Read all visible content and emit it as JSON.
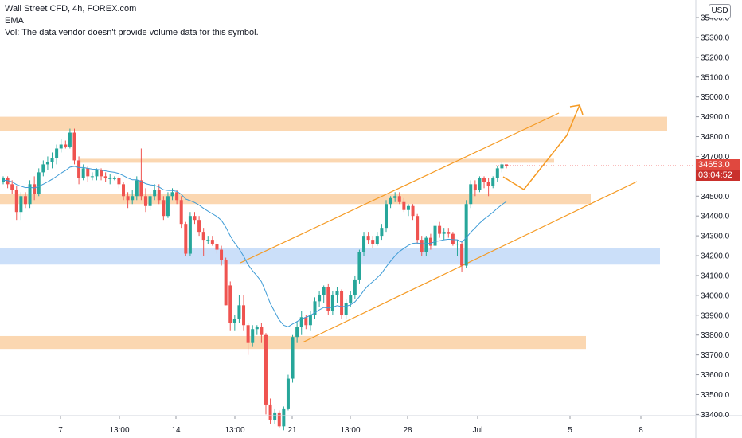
{
  "header": {
    "symbol_line": "Wall Street CFD, 4h, FOREX.com",
    "indicator": "EMA",
    "volume_note": "Vol: The data vendor doesn't provide volume data for this symbol."
  },
  "currency_button": "USD",
  "last_price": {
    "value": "34653.0",
    "countdown": "03:04:52"
  },
  "colors": {
    "up": "#26a69a",
    "down": "#ef5350",
    "ema": "#3d9bd6",
    "zone_orange": "#fbd3a8",
    "zone_blue": "#c5dcf8",
    "channel": "#f59a23"
  },
  "chart_data": {
    "type": "candlestick",
    "title": "Wall Street CFD, 4h, FOREX.com",
    "y_axis_labels": [
      "35400.0",
      "35300.0",
      "35200.0",
      "35100.0",
      "35000.0",
      "34900.0",
      "34800.0",
      "34700.0",
      "34600.0",
      "34500.0",
      "34400.0",
      "34300.0",
      "34200.0",
      "34100.0",
      "34000.0",
      "33900.0",
      "33800.0",
      "33700.0",
      "33600.0",
      "33500.0",
      "33400.0"
    ],
    "x_axis_labels": [
      "7",
      "13:00",
      "14",
      "13:00",
      "21",
      "13:00",
      "28",
      "Jul",
      "5",
      "8"
    ],
    "ylim": [
      33355,
      35450
    ],
    "support_resistance_zones": [
      {
        "color": "orange",
        "from": 34830,
        "to": 34900
      },
      {
        "color": "orange",
        "from": 34668,
        "to": 34688
      },
      {
        "color": "orange",
        "from": 34460,
        "to": 34510
      },
      {
        "color": "blue",
        "from": 34155,
        "to": 34240
      },
      {
        "color": "orange",
        "from": 33730,
        "to": 33795
      }
    ],
    "channel_lines": [
      {
        "role": "upper",
        "from": [
          34140
        ],
        "to": [
          34920
        ]
      },
      {
        "role": "lower",
        "from": [
          33800
        ],
        "to": [
          34580
        ]
      }
    ],
    "projection_path": [
      34655,
      34520,
      34780,
      35000,
      34950
    ],
    "series": [
      {
        "type": "candles",
        "values": [
          [
            34570,
            34600,
            34560,
            34590
          ],
          [
            34590,
            34600,
            34540,
            34560
          ],
          [
            34560,
            34580,
            34510,
            34530
          ],
          [
            34530,
            34550,
            34380,
            34420
          ],
          [
            34420,
            34520,
            34380,
            34500
          ],
          [
            34500,
            34520,
            34440,
            34460
          ],
          [
            34460,
            34580,
            34440,
            34560
          ],
          [
            34560,
            34600,
            34480,
            34510
          ],
          [
            34510,
            34640,
            34500,
            34620
          ],
          [
            34620,
            34680,
            34600,
            34660
          ],
          [
            34660,
            34700,
            34630,
            34670
          ],
          [
            34670,
            34720,
            34640,
            34690
          ],
          [
            34690,
            34760,
            34660,
            34740
          ],
          [
            34740,
            34790,
            34720,
            34760
          ],
          [
            34760,
            34780,
            34740,
            34750
          ],
          [
            34750,
            34840,
            34740,
            34820
          ],
          [
            34820,
            34840,
            34660,
            34680
          ],
          [
            34680,
            34700,
            34560,
            34590
          ],
          [
            34590,
            34660,
            34580,
            34640
          ],
          [
            34640,
            34650,
            34570,
            34600
          ],
          [
            34600,
            34620,
            34580,
            34600
          ],
          [
            34600,
            34640,
            34580,
            34630
          ],
          [
            34630,
            34640,
            34580,
            34600
          ],
          [
            34600,
            34620,
            34570,
            34590
          ],
          [
            34590,
            34610,
            34560,
            34590
          ],
          [
            34590,
            34600,
            34580,
            34590
          ],
          [
            34590,
            34600,
            34540,
            34560
          ],
          [
            34560,
            34570,
            34480,
            34500
          ],
          [
            34500,
            34520,
            34440,
            34480
          ],
          [
            34480,
            34530,
            34460,
            34500
          ],
          [
            34500,
            34600,
            34480,
            34580
          ],
          [
            34580,
            34740,
            34480,
            34500
          ],
          [
            34500,
            34540,
            34420,
            34450
          ],
          [
            34450,
            34520,
            34430,
            34500
          ],
          [
            34500,
            34560,
            34480,
            34530
          ],
          [
            34530,
            34560,
            34460,
            34480
          ],
          [
            34480,
            34500,
            34380,
            34400
          ],
          [
            34400,
            34520,
            34390,
            34500
          ],
          [
            34500,
            34540,
            34480,
            34520
          ],
          [
            34520,
            34530,
            34460,
            34480
          ],
          [
            34480,
            34500,
            34340,
            34360
          ],
          [
            34360,
            34370,
            34200,
            34210
          ],
          [
            34210,
            34420,
            34200,
            34400
          ],
          [
            34400,
            34420,
            34360,
            34380
          ],
          [
            34380,
            34400,
            34300,
            34320
          ],
          [
            34320,
            34340,
            34200,
            34280
          ],
          [
            34280,
            34300,
            34260,
            34280
          ],
          [
            34280,
            34300,
            34250,
            34260
          ],
          [
            34260,
            34280,
            34210,
            34230
          ],
          [
            34230,
            34250,
            34150,
            34180
          ],
          [
            34180,
            34190,
            33950,
            33950
          ],
          [
            34050,
            34070,
            33820,
            33860
          ],
          [
            33860,
            33900,
            33820,
            33880
          ],
          [
            33880,
            34000,
            33860,
            33950
          ],
          [
            33950,
            34000,
            33820,
            33850
          ],
          [
            33850,
            33860,
            33700,
            33760
          ],
          [
            33760,
            33850,
            33740,
            33830
          ],
          [
            33830,
            33850,
            33800,
            33840
          ],
          [
            33840,
            33860,
            33760,
            33800
          ],
          [
            33800,
            33810,
            33400,
            33450
          ],
          [
            33450,
            33480,
            33350,
            33370
          ],
          [
            33370,
            33430,
            33350,
            33410
          ],
          [
            33410,
            33420,
            33330,
            33340
          ],
          [
            33340,
            33440,
            33320,
            33430
          ],
          [
            33430,
            33600,
            33420,
            33580
          ],
          [
            33580,
            33800,
            33560,
            33790
          ],
          [
            33790,
            33870,
            33760,
            33840
          ],
          [
            33840,
            33920,
            33800,
            33890
          ],
          [
            33890,
            33900,
            33830,
            33850
          ],
          [
            33850,
            33920,
            33820,
            33900
          ],
          [
            33900,
            33990,
            33880,
            33970
          ],
          [
            33970,
            34020,
            33940,
            34000
          ],
          [
            34000,
            34050,
            33960,
            34040
          ],
          [
            34040,
            34060,
            33900,
            33920
          ],
          [
            33920,
            34020,
            33900,
            34000
          ],
          [
            34000,
            34040,
            33960,
            34020
          ],
          [
            34020,
            34030,
            33880,
            33900
          ],
          [
            33900,
            33980,
            33880,
            33960
          ],
          [
            33960,
            34020,
            33940,
            34000
          ],
          [
            34000,
            34100,
            33980,
            34080
          ],
          [
            34080,
            34230,
            34060,
            34220
          ],
          [
            34220,
            34320,
            34200,
            34300
          ],
          [
            34300,
            34320,
            34260,
            34280
          ],
          [
            34280,
            34300,
            34240,
            34260
          ],
          [
            34260,
            34320,
            34250,
            34300
          ],
          [
            34300,
            34360,
            34280,
            34340
          ],
          [
            34340,
            34480,
            34320,
            34460
          ],
          [
            34460,
            34500,
            34440,
            34490
          ],
          [
            34490,
            34520,
            34470,
            34500
          ],
          [
            34500,
            34520,
            34460,
            34470
          ],
          [
            34470,
            34490,
            34420,
            34430
          ],
          [
            34430,
            34460,
            34400,
            34450
          ],
          [
            34450,
            34460,
            34380,
            34400
          ],
          [
            34400,
            34410,
            34260,
            34280
          ],
          [
            34280,
            34300,
            34200,
            34220
          ],
          [
            34220,
            34300,
            34200,
            34290
          ],
          [
            34290,
            34310,
            34230,
            34250
          ],
          [
            34250,
            34360,
            34240,
            34350
          ],
          [
            34350,
            34370,
            34290,
            34310
          ],
          [
            34310,
            34340,
            34280,
            34320
          ],
          [
            34320,
            34340,
            34290,
            34310
          ],
          [
            34310,
            34320,
            34250,
            34260
          ],
          [
            34260,
            34280,
            34200,
            34260
          ],
          [
            34260,
            34270,
            34120,
            34150
          ],
          [
            34150,
            34480,
            34140,
            34460
          ],
          [
            34460,
            34580,
            34440,
            34560
          ],
          [
            34560,
            34580,
            34500,
            34530
          ],
          [
            34530,
            34600,
            34520,
            34590
          ],
          [
            34590,
            34600,
            34540,
            34570
          ],
          [
            34570,
            34590,
            34500,
            34550
          ],
          [
            34550,
            34600,
            34540,
            34590
          ],
          [
            34590,
            34650,
            34570,
            34640
          ],
          [
            34640,
            34670,
            34620,
            34660
          ],
          [
            34660,
            34660,
            34640,
            34653
          ]
        ]
      },
      {
        "type": "ema",
        "values": [
          34580,
          34578,
          34572,
          34558,
          34550,
          34543,
          34544,
          34541,
          34549,
          34560,
          34572,
          34585,
          34600,
          34616,
          34629,
          34646,
          34650,
          34644,
          34644,
          34640,
          34636,
          34635,
          34631,
          34627,
          34623,
          34620,
          34614,
          34603,
          34591,
          34582,
          34582,
          34574,
          34563,
          34557,
          34554,
          34546,
          34532,
          34529,
          34528,
          34524,
          34509,
          34485,
          34477,
          34468,
          34455,
          34438,
          34424,
          34411,
          34397,
          34378,
          34344,
          34300,
          34264,
          34234,
          34197,
          34155,
          34124,
          34098,
          34069,
          34015,
          33958,
          33917,
          33875,
          33849,
          33842,
          33856,
          33868,
          33882,
          33889,
          33899,
          33913,
          33927,
          33939,
          33936,
          33941,
          33948,
          33943,
          33945,
          33952,
          33967,
          33993,
          34025,
          34050,
          34069,
          34089,
          34112,
          34143,
          34172,
          34199,
          34221,
          34237,
          34252,
          34262,
          34264,
          34259,
          34262,
          34262,
          34271,
          34275,
          34280,
          34283,
          34281,
          34280,
          34268,
          34290,
          34318,
          34340,
          34364,
          34384,
          34401,
          34419,
          34439,
          34457,
          34473
        ]
      }
    ]
  }
}
